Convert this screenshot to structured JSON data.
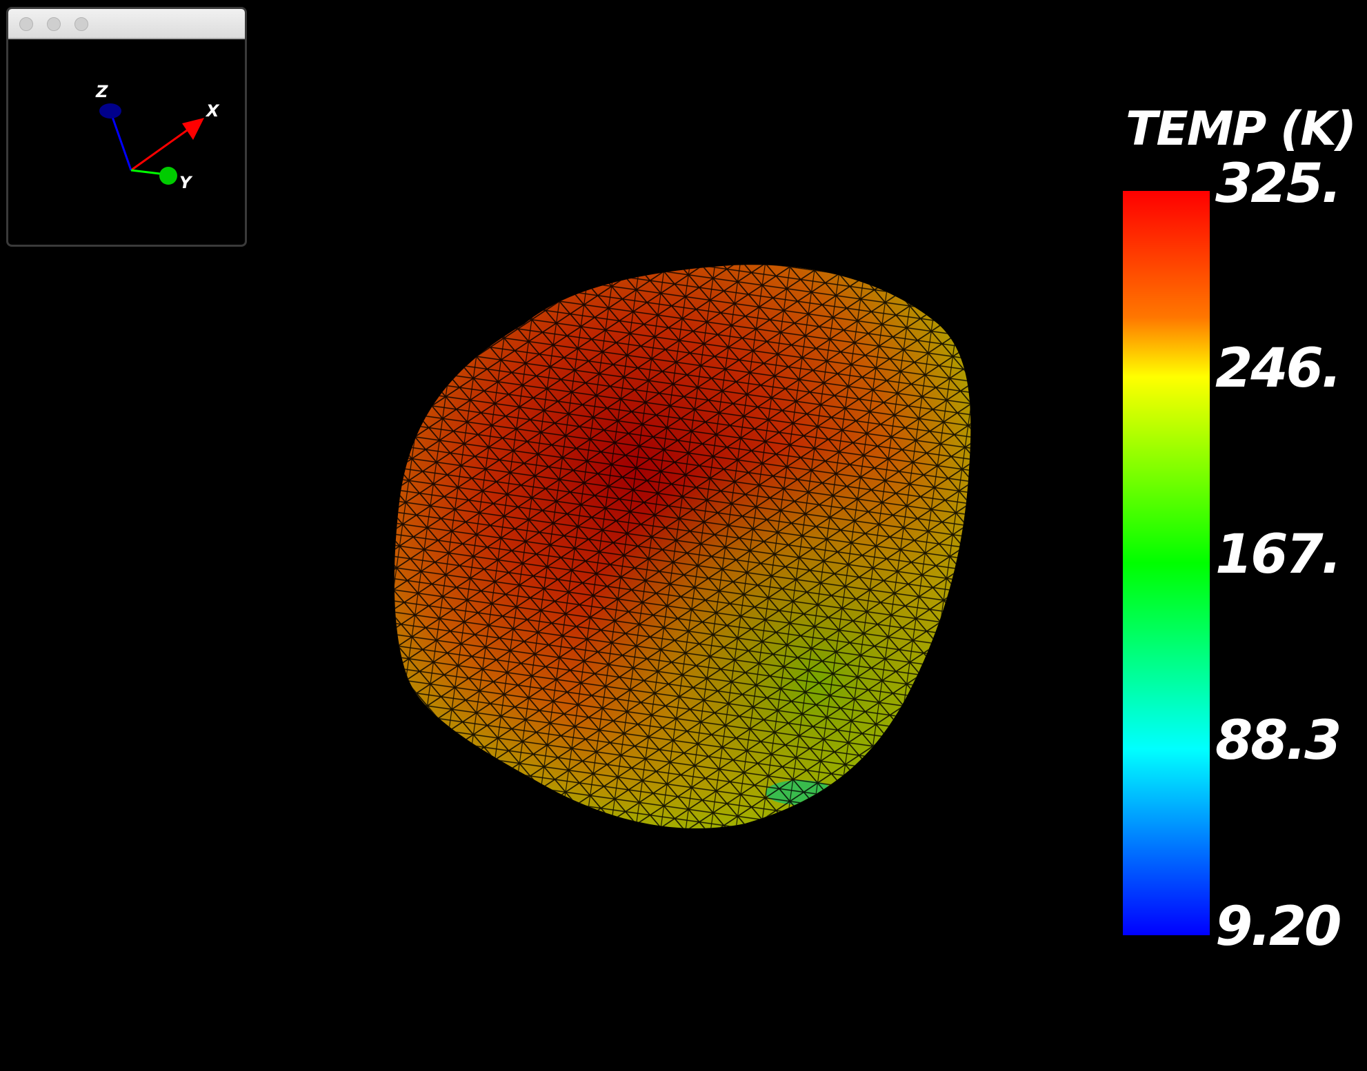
{
  "axes_widget": {
    "axis_x_label": "X",
    "axis_y_label": "Y",
    "axis_z_label": "Z",
    "axis_x_color": "#ff0000",
    "axis_y_color": "#00ff00",
    "axis_z_color": "#0000cc"
  },
  "colorbar": {
    "title": "TEMP (K)",
    "labels": [
      "325.",
      "246.",
      "167.",
      "88.3",
      "9.20"
    ]
  },
  "colormap": {
    "max_color": "#ff0000",
    "mid_color": "#00ff00",
    "min_color": "#0000ff"
  }
}
